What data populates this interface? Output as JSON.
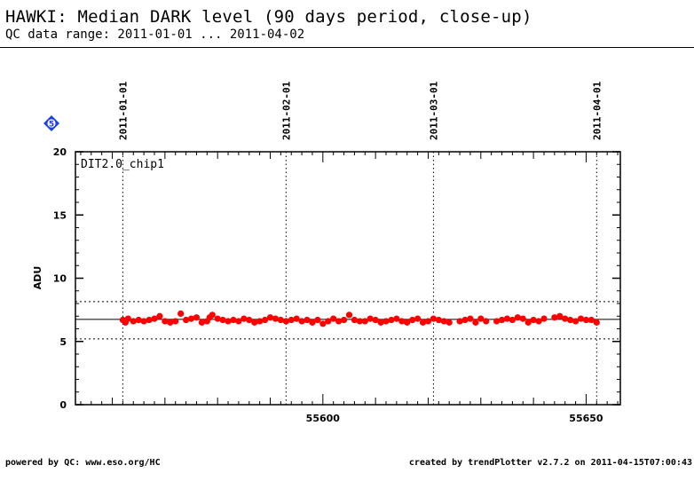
{
  "header": {
    "title": "HAWKI: Median DARK level (90 days period, close-up)",
    "subtitle": "QC data range: 2011-01-01 ... 2011-04-02"
  },
  "footer": {
    "left": "powered by QC: www.eso.org/HC",
    "right": "created by trendPlotter v2.7.2 on 2011-04-15T07:00:43"
  },
  "badge": {
    "text": "5",
    "color": "#1f3fe0"
  },
  "chart_data": {
    "type": "scatter",
    "panel_label": "DIT2.0_chip1",
    "ylabel": "ADU",
    "xlim": [
      55553.0,
      55656.5
    ],
    "ylim": [
      0,
      20
    ],
    "y_ticks": [
      0,
      5,
      10,
      15,
      20
    ],
    "x_ticks_labeled": [
      55600,
      55650
    ],
    "date_markers": [
      {
        "label": "2011-01-01",
        "x": 55562
      },
      {
        "label": "2011-02-01",
        "x": 55593
      },
      {
        "label": "2011-03-01",
        "x": 55621
      },
      {
        "label": "2011-04-01",
        "x": 55652
      }
    ],
    "reference_lines": {
      "median": 6.75,
      "upper": 8.15,
      "lower": 5.2
    },
    "point_color": "#ff0000",
    "series": [
      {
        "x": [
          55562,
          55562.5,
          55563,
          55564,
          55565,
          55566,
          55567,
          55568,
          55569,
          55570,
          55571,
          55572,
          55573,
          55574,
          55575,
          55576,
          55577,
          55578,
          55578.5,
          55579,
          55580,
          55581,
          55582,
          55583,
          55584,
          55585,
          55586,
          55587,
          55588,
          55589,
          55590,
          55591,
          55592,
          55593,
          55594,
          55595,
          55596,
          55597,
          55598,
          55599,
          55600,
          55601,
          55602,
          55603,
          55604,
          55605,
          55606,
          55607,
          55608,
          55609,
          55610,
          55611,
          55612,
          55613,
          55614,
          55615,
          55616,
          55617,
          55618,
          55619,
          55620,
          55621,
          55622,
          55623,
          55624,
          55626,
          55627,
          55628,
          55629,
          55630,
          55631,
          55633,
          55634,
          55635,
          55636,
          55637,
          55638,
          55639,
          55640,
          55641,
          55642,
          55644,
          55645,
          55646,
          55647,
          55648,
          55649,
          55650,
          55651,
          55652
        ],
        "y": [
          6.7,
          6.5,
          6.8,
          6.6,
          6.7,
          6.6,
          6.7,
          6.8,
          7.0,
          6.6,
          6.5,
          6.6,
          7.2,
          6.7,
          6.8,
          6.9,
          6.5,
          6.6,
          6.9,
          7.1,
          6.8,
          6.7,
          6.6,
          6.7,
          6.6,
          6.8,
          6.7,
          6.5,
          6.6,
          6.7,
          6.9,
          6.8,
          6.7,
          6.6,
          6.7,
          6.8,
          6.6,
          6.7,
          6.5,
          6.7,
          6.4,
          6.6,
          6.8,
          6.6,
          6.7,
          7.1,
          6.7,
          6.6,
          6.6,
          6.8,
          6.7,
          6.5,
          6.6,
          6.7,
          6.8,
          6.6,
          6.5,
          6.7,
          6.8,
          6.5,
          6.6,
          6.8,
          6.7,
          6.6,
          6.5,
          6.6,
          6.7,
          6.8,
          6.5,
          6.8,
          6.6,
          6.6,
          6.7,
          6.8,
          6.7,
          6.9,
          6.8,
          6.5,
          6.7,
          6.6,
          6.8,
          6.9,
          7.0,
          6.8,
          6.7,
          6.6,
          6.8,
          6.7,
          6.7,
          6.5
        ]
      }
    ]
  }
}
